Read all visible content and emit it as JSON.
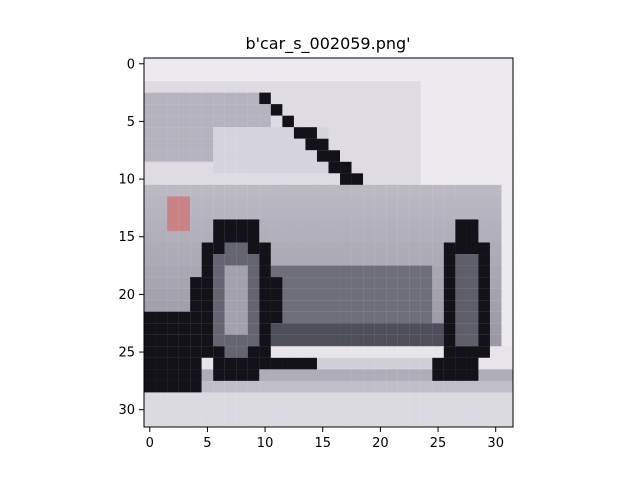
{
  "figure": {
    "title": "b'car_s_002059.png'",
    "background": "#ffffff",
    "axes_color": "#000000"
  },
  "image": {
    "description_type": "pixelated car image",
    "grid_size": 32,
    "x_ticks": [
      "0",
      "5",
      "10",
      "15",
      "20",
      "25",
      "30"
    ],
    "y_ticks": [
      "0",
      "5",
      "10",
      "15",
      "20",
      "25",
      "30"
    ],
    "palette": {
      "sky": "#ece9ef",
      "body_light": "#c9c7d0",
      "body_mid": "#8f8e99",
      "body_dark": "#4e4f5b",
      "tire": "#121218",
      "tail_light": "#c98386"
    }
  }
}
